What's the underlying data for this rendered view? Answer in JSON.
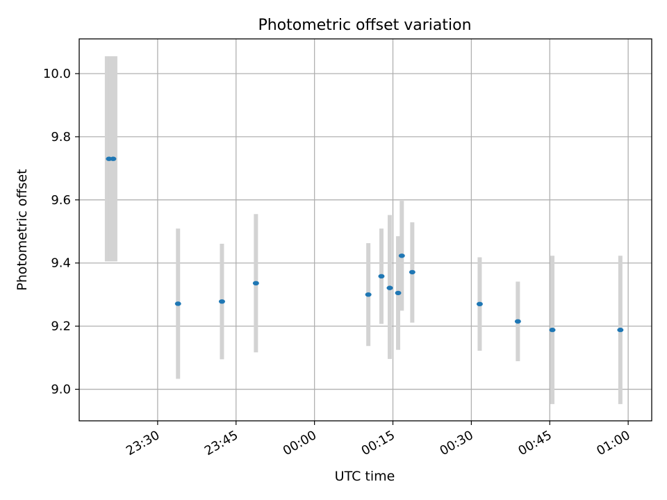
{
  "chart_data": {
    "type": "scatter",
    "title": "Photometric offset variation",
    "xlabel": "UTC time",
    "ylabel": "Photometric offset",
    "x_unit": "minutes relative to 00:00 UTC",
    "xlim": [
      -45,
      64.5
    ],
    "ylim": [
      8.9,
      10.11
    ],
    "grid": true,
    "xticks": [
      {
        "label": "23:30",
        "value": -30
      },
      {
        "label": "23:45",
        "value": -15
      },
      {
        "label": "00:00",
        "value": 0
      },
      {
        "label": "00:15",
        "value": 15
      },
      {
        "label": "00:30",
        "value": 30
      },
      {
        "label": "00:45",
        "value": 45
      },
      {
        "label": "01:00",
        "value": 60
      }
    ],
    "yticks": [
      {
        "label": "9.0",
        "value": 9.0
      },
      {
        "label": "9.2",
        "value": 9.2
      },
      {
        "label": "9.4",
        "value": 9.4
      },
      {
        "label": "9.6",
        "value": 9.6
      },
      {
        "label": "9.8",
        "value": 9.8
      },
      {
        "label": "10.0",
        "value": 10.0
      }
    ],
    "points": [
      {
        "x": -39.3,
        "y": 9.73,
        "low": 9.405,
        "high": 10.055
      },
      {
        "x": -38.5,
        "y": 9.73,
        "low": 9.405,
        "high": 10.055
      },
      {
        "x": -26.1,
        "y": 9.271,
        "low": 9.033,
        "high": 9.509
      },
      {
        "x": -17.7,
        "y": 9.278,
        "low": 9.095,
        "high": 9.461
      },
      {
        "x": -11.2,
        "y": 9.336,
        "low": 9.117,
        "high": 9.555
      },
      {
        "x": 10.3,
        "y": 9.3,
        "low": 9.137,
        "high": 9.463
      },
      {
        "x": 12.8,
        "y": 9.358,
        "low": 9.207,
        "high": 9.509
      },
      {
        "x": 14.4,
        "y": 9.321,
        "low": 9.096,
        "high": 9.552
      },
      {
        "x": 16.0,
        "y": 9.305,
        "low": 9.125,
        "high": 9.485
      },
      {
        "x": 16.7,
        "y": 9.423,
        "low": 9.249,
        "high": 9.597
      },
      {
        "x": 18.7,
        "y": 9.371,
        "low": 9.211,
        "high": 9.529
      },
      {
        "x": 31.6,
        "y": 9.27,
        "low": 9.122,
        "high": 9.418
      },
      {
        "x": 38.9,
        "y": 9.215,
        "low": 9.089,
        "high": 9.341
      },
      {
        "x": 45.5,
        "y": 9.188,
        "low": 8.953,
        "high": 9.423
      },
      {
        "x": 58.5,
        "y": 9.188,
        "low": 8.953,
        "high": 9.423
      }
    ],
    "point_color": "#1f77b4",
    "errorbar_color": "#d3d3d3",
    "grid_color": "#b0b0b0"
  }
}
